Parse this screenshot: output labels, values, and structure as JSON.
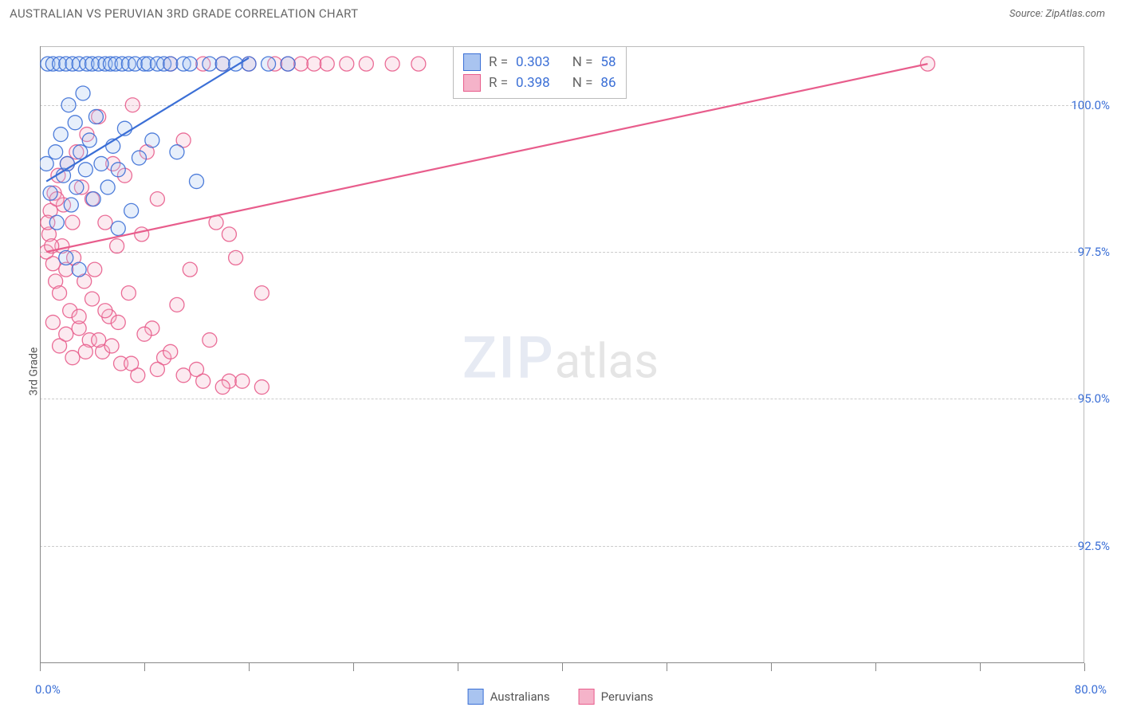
{
  "header": {
    "title": "AUSTRALIAN VS PERUVIAN 3RD GRADE CORRELATION CHART",
    "source_prefix": "Source:",
    "source_name": "ZipAtlas.com"
  },
  "watermark": {
    "zip": "ZIP",
    "atlas": "atlas"
  },
  "chart": {
    "type": "scatter",
    "ylabel": "3rd Grade",
    "xlim": [
      0,
      80
    ],
    "ylim": [
      90.5,
      101
    ],
    "xlim_labels": {
      "min": "0.0%",
      "max": "80.0%"
    },
    "xticks": [
      0,
      8,
      16,
      24,
      32,
      40,
      48,
      56,
      64,
      72,
      80
    ],
    "ygrid": [
      92.5,
      95.0,
      97.5,
      100.0
    ],
    "ygrid_labels": [
      "92.5%",
      "95.0%",
      "97.5%",
      "100.0%"
    ],
    "background_color": "#ffffff",
    "grid_color": "#cccccc",
    "axis_color": "#888888",
    "tick_label_color": "#3b6fd6",
    "marker_radius": 9,
    "marker_stroke_opacity": 0.9,
    "marker_fill_opacity": 0.28,
    "line_width": 2.2,
    "series": [
      {
        "name": "Australians",
        "color": "#3b6fd6",
        "fill": "#a9c4f0",
        "R": "0.303",
        "N": "58",
        "trend": {
          "x1": 0.5,
          "y1": 98.7,
          "x2": 16,
          "y2": 100.8
        },
        "points": [
          [
            0.5,
            99.0
          ],
          [
            0.6,
            100.7
          ],
          [
            0.8,
            98.5
          ],
          [
            1.0,
            100.7
          ],
          [
            1.2,
            99.2
          ],
          [
            1.3,
            98.0
          ],
          [
            1.5,
            100.7
          ],
          [
            1.6,
            99.5
          ],
          [
            1.8,
            98.8
          ],
          [
            2.0,
            100.7
          ],
          [
            2.1,
            99.0
          ],
          [
            2.2,
            100.0
          ],
          [
            2.4,
            98.3
          ],
          [
            2.5,
            100.7
          ],
          [
            2.7,
            99.7
          ],
          [
            2.8,
            98.6
          ],
          [
            3.0,
            100.7
          ],
          [
            3.1,
            99.2
          ],
          [
            3.3,
            100.2
          ],
          [
            3.5,
            98.9
          ],
          [
            3.6,
            100.7
          ],
          [
            3.8,
            99.4
          ],
          [
            4.0,
            100.7
          ],
          [
            4.1,
            98.4
          ],
          [
            4.3,
            99.8
          ],
          [
            4.5,
            100.7
          ],
          [
            4.7,
            99.0
          ],
          [
            5.0,
            100.7
          ],
          [
            5.2,
            98.6
          ],
          [
            5.4,
            100.7
          ],
          [
            5.6,
            99.3
          ],
          [
            5.8,
            100.7
          ],
          [
            6.0,
            98.9
          ],
          [
            6.3,
            100.7
          ],
          [
            6.5,
            99.6
          ],
          [
            6.8,
            100.7
          ],
          [
            7.0,
            98.2
          ],
          [
            7.3,
            100.7
          ],
          [
            7.6,
            99.1
          ],
          [
            8.0,
            100.7
          ],
          [
            8.3,
            100.7
          ],
          [
            8.6,
            99.4
          ],
          [
            9.0,
            100.7
          ],
          [
            9.5,
            100.7
          ],
          [
            10.0,
            100.7
          ],
          [
            10.5,
            99.2
          ],
          [
            11.0,
            100.7
          ],
          [
            11.5,
            100.7
          ],
          [
            12.0,
            98.7
          ],
          [
            13.0,
            100.7
          ],
          [
            14.0,
            100.7
          ],
          [
            15.0,
            100.7
          ],
          [
            16.0,
            100.7
          ],
          [
            17.5,
            100.7
          ],
          [
            19.0,
            100.7
          ],
          [
            2.0,
            97.4
          ],
          [
            3.0,
            97.2
          ],
          [
            6.0,
            97.9
          ]
        ]
      },
      {
        "name": "Peruvians",
        "color": "#e85d8c",
        "fill": "#f5b3c9",
        "R": "0.398",
        "N": "86",
        "trend": {
          "x1": 0.5,
          "y1": 97.5,
          "x2": 68,
          "y2": 100.7
        },
        "points": [
          [
            0.5,
            97.5
          ],
          [
            0.7,
            97.8
          ],
          [
            0.8,
            98.2
          ],
          [
            1.0,
            97.3
          ],
          [
            1.1,
            98.5
          ],
          [
            1.2,
            97.0
          ],
          [
            1.4,
            98.8
          ],
          [
            1.5,
            96.8
          ],
          [
            1.7,
            97.6
          ],
          [
            1.8,
            98.3
          ],
          [
            2.0,
            97.2
          ],
          [
            2.1,
            99.0
          ],
          [
            2.3,
            96.5
          ],
          [
            2.5,
            98.0
          ],
          [
            2.6,
            97.4
          ],
          [
            2.8,
            99.2
          ],
          [
            3.0,
            96.2
          ],
          [
            3.2,
            98.6
          ],
          [
            3.4,
            97.0
          ],
          [
            3.6,
            99.5
          ],
          [
            3.8,
            96.0
          ],
          [
            4.0,
            98.4
          ],
          [
            4.2,
            97.2
          ],
          [
            4.5,
            99.8
          ],
          [
            4.8,
            95.8
          ],
          [
            5.0,
            98.0
          ],
          [
            5.3,
            96.4
          ],
          [
            5.6,
            99.0
          ],
          [
            5.9,
            97.6
          ],
          [
            6.2,
            95.6
          ],
          [
            6.5,
            98.8
          ],
          [
            6.8,
            96.8
          ],
          [
            7.1,
            100.0
          ],
          [
            7.5,
            95.4
          ],
          [
            7.8,
            97.8
          ],
          [
            8.2,
            99.2
          ],
          [
            8.6,
            96.2
          ],
          [
            9.0,
            98.4
          ],
          [
            9.5,
            95.7
          ],
          [
            10.0,
            100.7
          ],
          [
            10.5,
            96.6
          ],
          [
            11.0,
            99.4
          ],
          [
            11.5,
            97.2
          ],
          [
            12.0,
            95.5
          ],
          [
            12.5,
            100.7
          ],
          [
            13.0,
            96.0
          ],
          [
            13.5,
            98.0
          ],
          [
            14.0,
            100.7
          ],
          [
            14.5,
            95.3
          ],
          [
            15.0,
            97.4
          ],
          [
            16.0,
            100.7
          ],
          [
            17.0,
            96.8
          ],
          [
            18.0,
            100.7
          ],
          [
            19.0,
            100.7
          ],
          [
            20.0,
            100.7
          ],
          [
            21.0,
            100.7
          ],
          [
            22.0,
            100.7
          ],
          [
            23.5,
            100.7
          ],
          [
            25.0,
            100.7
          ],
          [
            27.0,
            100.7
          ],
          [
            29.0,
            100.7
          ],
          [
            1.0,
            96.3
          ],
          [
            1.5,
            95.9
          ],
          [
            2.0,
            96.1
          ],
          [
            2.5,
            95.7
          ],
          [
            3.0,
            96.4
          ],
          [
            3.5,
            95.8
          ],
          [
            4.0,
            96.7
          ],
          [
            4.5,
            96.0
          ],
          [
            5.0,
            96.5
          ],
          [
            5.5,
            95.9
          ],
          [
            6.0,
            96.3
          ],
          [
            7.0,
            95.6
          ],
          [
            8.0,
            96.1
          ],
          [
            9.0,
            95.5
          ],
          [
            10.0,
            95.8
          ],
          [
            11.0,
            95.4
          ],
          [
            12.5,
            95.3
          ],
          [
            14.0,
            95.2
          ],
          [
            15.5,
            95.3
          ],
          [
            17.0,
            95.2
          ],
          [
            0.6,
            98.0
          ],
          [
            0.9,
            97.6
          ],
          [
            1.3,
            98.4
          ],
          [
            68.0,
            100.7
          ],
          [
            14.5,
            97.8
          ]
        ]
      }
    ],
    "legend": [
      {
        "label": "Australians",
        "color": "#3b6fd6",
        "fill": "#a9c4f0"
      },
      {
        "label": "Peruvians",
        "color": "#e85d8c",
        "fill": "#f5b3c9"
      }
    ]
  }
}
